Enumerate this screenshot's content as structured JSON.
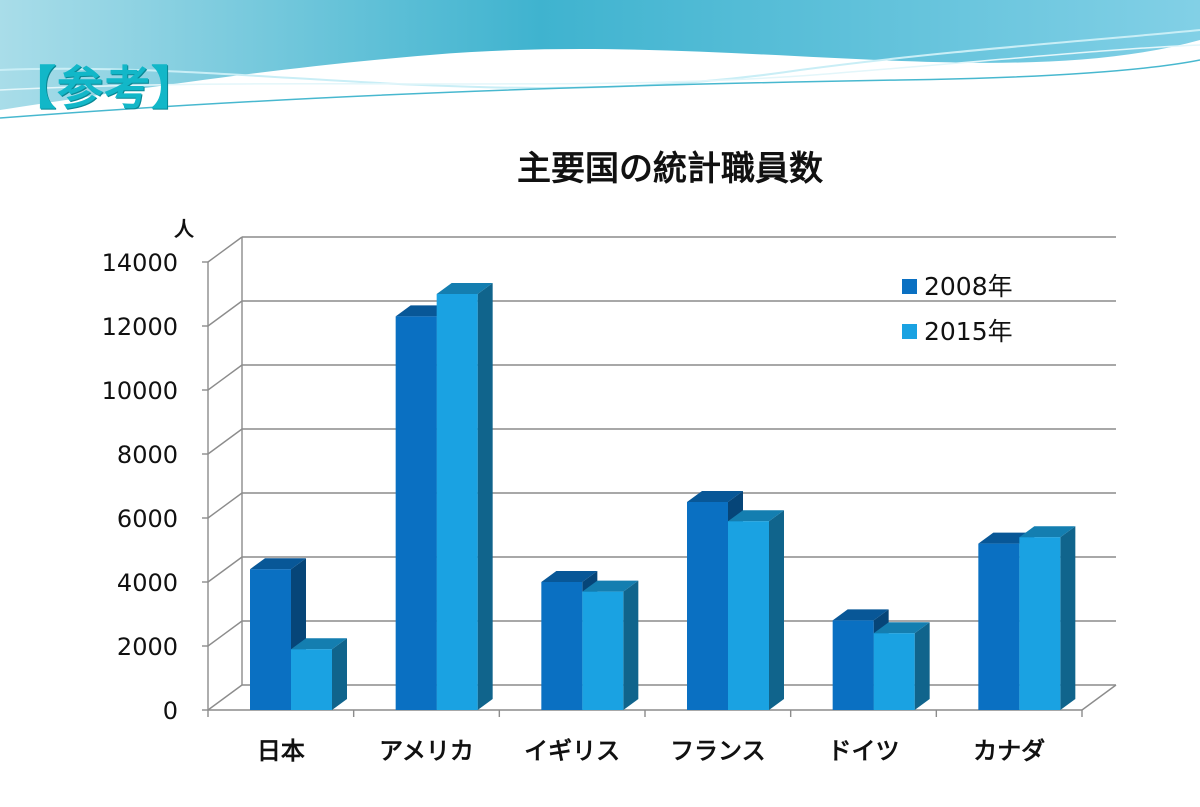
{
  "slide": {
    "heading": "【参考】"
  },
  "chart_data": {
    "type": "bar",
    "title": "主要国の統計職員数",
    "ylabel": "人",
    "xlabel": "",
    "ylim": [
      0,
      14000
    ],
    "yticks": [
      0,
      2000,
      4000,
      6000,
      8000,
      10000,
      12000,
      14000
    ],
    "categories": [
      "日本",
      "アメリカ",
      "イギリス",
      "フランス",
      "ドイツ",
      "カナダ"
    ],
    "series": [
      {
        "name": "2008年",
        "values": [
          4400,
          12300,
          4000,
          6500,
          2800,
          5200
        ],
        "color": "#0a70c2"
      },
      {
        "name": "2015年",
        "values": [
          1900,
          13000,
          3700,
          5900,
          2400,
          5400
        ],
        "color": "#1aa2e2"
      }
    ],
    "legend_position": "top-right",
    "grid": true,
    "style": "3d-clustered-column"
  }
}
